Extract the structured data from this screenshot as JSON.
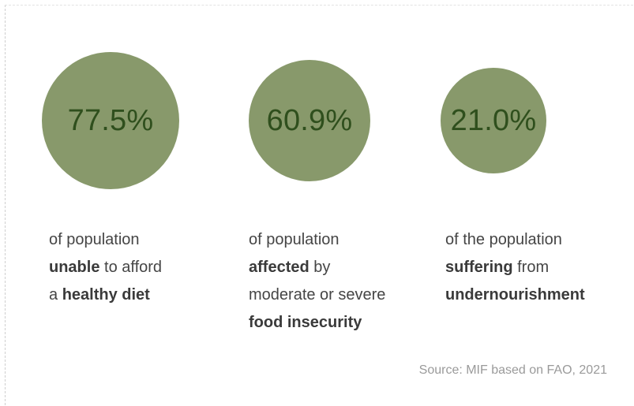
{
  "chart_data": {
    "type": "bubble",
    "colors": {
      "bubble": "#88996b",
      "value_text": "#2f4f1d"
    },
    "stats": [
      {
        "value": 77.5,
        "label": "77.5%",
        "caption_lines": [
          [
            "of population"
          ],
          [
            "unable",
            " to afford"
          ],
          [
            "a ",
            "healthy diet"
          ]
        ],
        "caption_bold": [
          [
            false
          ],
          [
            true,
            false
          ],
          [
            false,
            true
          ]
        ]
      },
      {
        "value": 60.9,
        "label": "60.9%",
        "caption_lines": [
          [
            "of population"
          ],
          [
            "affected",
            " by"
          ],
          [
            "moderate or severe"
          ],
          [
            "food insecurity"
          ]
        ],
        "caption_bold": [
          [
            false
          ],
          [
            true,
            false
          ],
          [
            false
          ],
          [
            true
          ]
        ]
      },
      {
        "value": 21.0,
        "label": "21.0%",
        "caption_lines": [
          [
            "of the population"
          ],
          [
            "suffering",
            " from"
          ],
          [
            "undernourishment"
          ]
        ],
        "caption_bold": [
          [
            false
          ],
          [
            true,
            false
          ],
          [
            true
          ]
        ]
      }
    ],
    "source": "Source: MIF based on FAO, 2021"
  }
}
